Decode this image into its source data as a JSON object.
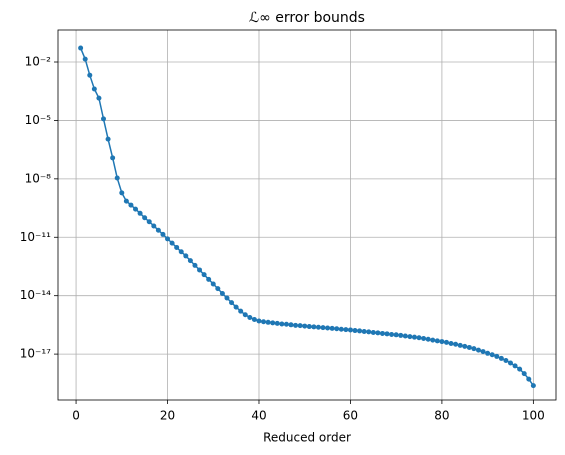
{
  "chart_data": {
    "type": "line",
    "title": "ℒ∞ error bounds",
    "x_label": "Reduced order",
    "x": [
      1,
      2,
      3,
      4,
      5,
      6,
      7,
      8,
      9,
      10,
      11,
      12,
      13,
      14,
      15,
      16,
      17,
      18,
      19,
      20,
      21,
      22,
      23,
      24,
      25,
      26,
      27,
      28,
      29,
      30,
      31,
      32,
      33,
      34,
      35,
      36,
      37,
      38,
      39,
      40,
      41,
      42,
      43,
      44,
      45,
      46,
      47,
      48,
      49,
      50,
      51,
      52,
      53,
      54,
      55,
      56,
      57,
      58,
      59,
      60,
      61,
      62,
      63,
      64,
      65,
      66,
      67,
      68,
      69,
      70,
      71,
      72,
      73,
      74,
      75,
      76,
      77,
      78,
      79,
      80,
      81,
      82,
      83,
      84,
      85,
      86,
      87,
      88,
      89,
      90,
      91,
      92,
      93,
      94,
      95,
      96,
      97,
      98,
      99,
      100
    ],
    "series": [
      {
        "color": "#1f77b4",
        "values": [
          0.052,
          0.014,
          0.0021,
          0.00041,
          0.00014,
          1.2e-05,
          1.1e-06,
          1.2e-07,
          1.1e-08,
          1.9e-09,
          7.2e-10,
          4.5e-10,
          2.8e-10,
          1.7e-10,
          1e-10,
          6.3e-11,
          3.8e-11,
          2.3e-11,
          1.4e-11,
          8.3e-12,
          5e-12,
          3e-12,
          1.8e-12,
          1.1e-12,
          6.3e-13,
          3.6e-13,
          2.1e-13,
          1.2e-13,
          6.9e-14,
          4e-14,
          2.3e-14,
          1.3e-14,
          7.6e-15,
          4.4e-15,
          2.6e-15,
          1.6e-15,
          1.05e-15,
          7.6e-16,
          6e-16,
          5e-16,
          4.6e-16,
          4.3e-16,
          4e-16,
          3.8e-16,
          3.5e-16,
          3.4e-16,
          3.2e-16,
          3e-16,
          2.9e-16,
          2.75e-16,
          2.6e-16,
          2.5e-16,
          2.4e-16,
          2.3e-16,
          2.2e-16,
          2.1e-16,
          2e-16,
          1.9e-16,
          1.8e-16,
          1.74e-16,
          1.62e-16,
          1.55e-16,
          1.45e-16,
          1.38e-16,
          1.29e-16,
          1.23e-16,
          1.15e-16,
          1.1e-16,
          1.02e-16,
          9.8e-17,
          9.1e-17,
          8.5e-17,
          7.9e-17,
          7.4e-17,
          6.9e-17,
          6.3e-17,
          5.8e-17,
          5.2e-17,
          4.8e-17,
          4.4e-17,
          4e-17,
          3.5e-17,
          3.2e-17,
          2.8e-17,
          2.5e-17,
          2.2e-17,
          1.9e-17,
          1.6e-17,
          1.35e-17,
          1.1e-17,
          9.3e-18,
          7.6e-18,
          6e-18,
          4.7e-18,
          3.5e-18,
          2.5e-18,
          1.7e-18,
          1e-18,
          5.2e-19,
          2.4e-19
        ]
      }
    ],
    "xlim": [
      -3.95,
      104.95
    ],
    "xticks": [
      0,
      20,
      40,
      60,
      80,
      100
    ],
    "ylim": [
      4.4e-20,
      0.44
    ],
    "y_scale": "log",
    "yticks": [
      {
        "value": 0.01,
        "label": "10⁻²"
      },
      {
        "value": 1e-05,
        "label": "10⁻⁵"
      },
      {
        "value": 1e-08,
        "label": "10⁻⁸"
      },
      {
        "value": 1e-11,
        "label": "10⁻¹¹"
      },
      {
        "value": 1e-14,
        "label": "10⁻¹⁴"
      },
      {
        "value": 1e-17,
        "label": "10⁻¹⁷"
      }
    ],
    "grid": true
  }
}
